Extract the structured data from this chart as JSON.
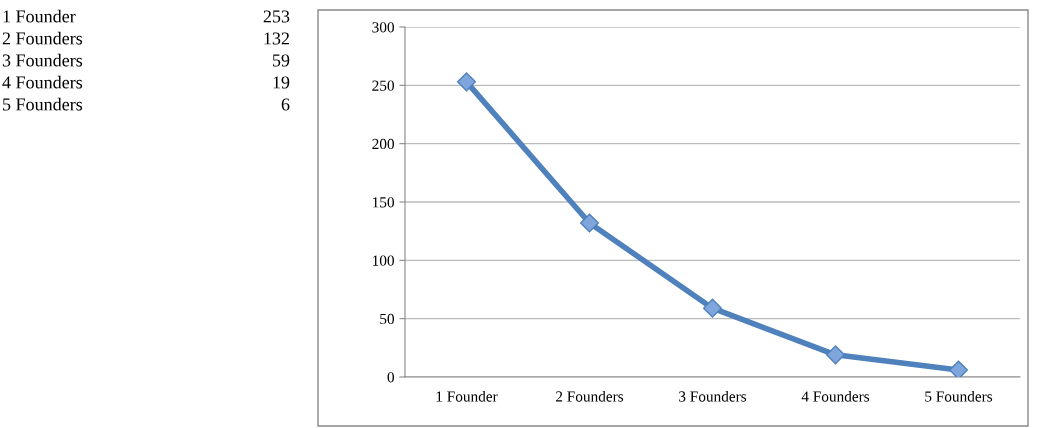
{
  "chart_data": [
    {
      "type": "other",
      "annotations": [
        "1 Founder",
        "253",
        "2 Founders",
        "132",
        "3 Founders",
        "59",
        "4 Founders",
        "19",
        "5 Founders",
        "6"
      ]
    },
    {
      "type": "line",
      "categories": [
        "1 Founder",
        "2 Founders",
        "3 Founders",
        "4 Founders",
        "5 Founders"
      ],
      "series": [
        {
          "color": "#4f81bd",
          "values": [
            253,
            132,
            59,
            19,
            6
          ]
        }
      ],
      "ylim": [
        0,
        300
      ],
      "yticks": [
        0,
        50,
        100,
        150,
        200,
        250,
        300
      ],
      "grid": "y",
      "marker": "diamond",
      "line_style": "solid"
    }
  ]
}
